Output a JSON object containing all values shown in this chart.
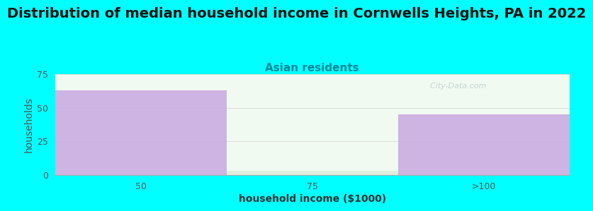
{
  "title": "Distribution of median household income in Cornwells Heights, PA in 2022",
  "subtitle": "Asian residents",
  "xlabel": "household income ($1000)",
  "ylabel": "households",
  "categories": [
    "50",
    "75",
    ">100"
  ],
  "values": [
    63,
    3,
    45
  ],
  "bar_colors": [
    "#c9a8e0",
    "#daeeda",
    "#c9a8e0"
  ],
  "bar_alphas": [
    0.85,
    0.85,
    0.85
  ],
  "background_color": "#00ffff",
  "plot_bg_top": "#f0faf0",
  "plot_bg_bottom": "#ffffff",
  "ylim": [
    0,
    75
  ],
  "yticks": [
    0,
    25,
    50,
    75
  ],
  "title_fontsize": 14,
  "subtitle_fontsize": 11,
  "subtitle_color": "#008899",
  "axis_label_fontsize": 10,
  "tick_fontsize": 9,
  "watermark": "  City-Data.com"
}
